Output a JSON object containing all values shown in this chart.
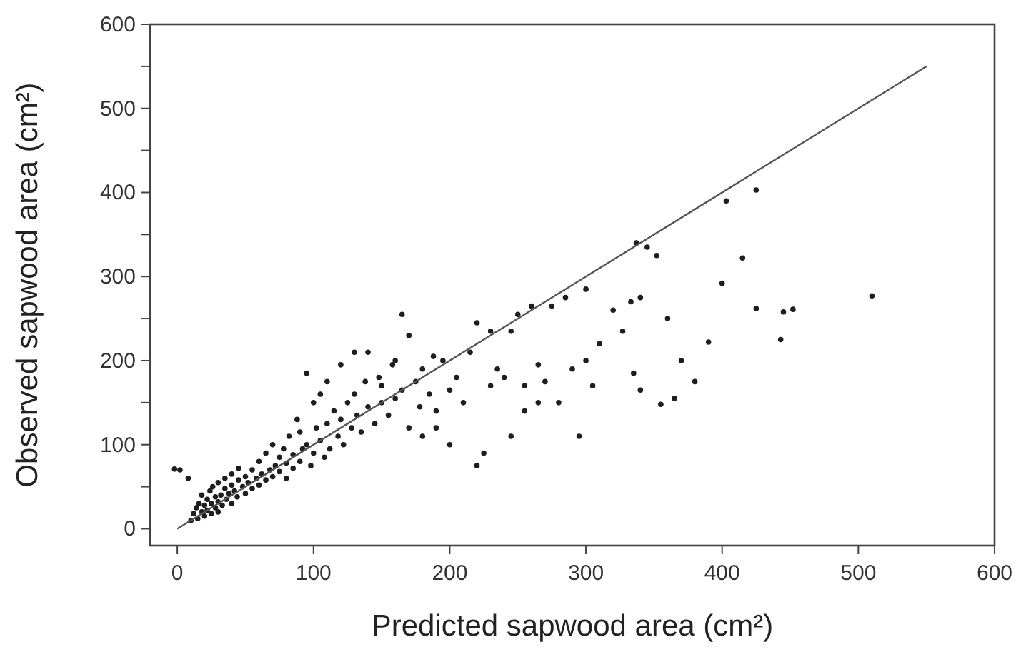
{
  "chart_data": {
    "type": "scatter",
    "xlabel": "Predicted sapwood area (cm²)",
    "ylabel": "Observed sapwood area (cm²)",
    "xlim": [
      -20,
      600
    ],
    "ylim": [
      -20,
      600
    ],
    "xticks": [
      0,
      100,
      200,
      300,
      400,
      500,
      600
    ],
    "yticks": [
      0,
      {
        "value": 50,
        "label": null
      },
      100,
      {
        "value": 150,
        "label": null
      },
      200,
      {
        "value": 250,
        "label": null
      },
      300,
      {
        "value": 350,
        "label": null
      },
      400,
      {
        "value": 450,
        "label": null
      },
      500,
      {
        "value": 550,
        "label": null
      },
      600
    ],
    "grid": false,
    "series": [
      {
        "type": "scatter",
        "color": "#1e1e1e",
        "marker": "circle",
        "x": [
          -2,
          2,
          8,
          10,
          12,
          14,
          15,
          16,
          18,
          18,
          20,
          20,
          22,
          22,
          24,
          25,
          25,
          26,
          28,
          28,
          30,
          30,
          30,
          32,
          33,
          35,
          35,
          36,
          38,
          40,
          40,
          40,
          42,
          44,
          45,
          45,
          48,
          50,
          50,
          52,
          55,
          55,
          58,
          60,
          60,
          62,
          65,
          65,
          68,
          70,
          70,
          72,
          75,
          75,
          78,
          80,
          80,
          82,
          85,
          85,
          88,
          90,
          90,
          92,
          95,
          95,
          98,
          100,
          100,
          102,
          105,
          105,
          108,
          110,
          110,
          112,
          115,
          118,
          120,
          120,
          122,
          125,
          128,
          130,
          130,
          132,
          135,
          138,
          140,
          140,
          145,
          148,
          150,
          150,
          155,
          158,
          160,
          160,
          165,
          165,
          170,
          170,
          175,
          178,
          180,
          180,
          185,
          188,
          190,
          190,
          195,
          200,
          200,
          205,
          210,
          215,
          220,
          220,
          225,
          230,
          230,
          235,
          240,
          245,
          245,
          250,
          255,
          255,
          260,
          265,
          265,
          270,
          275,
          280,
          285,
          290,
          295,
          300,
          300,
          305,
          310,
          320,
          327,
          333,
          335,
          337,
          340,
          340,
          345,
          352,
          355,
          360,
          365,
          370,
          380,
          390,
          400,
          403,
          415,
          425,
          425,
          443,
          445,
          452,
          510
        ],
        "values": [
          71,
          70,
          60,
          10,
          18,
          25,
          12,
          30,
          20,
          40,
          15,
          28,
          35,
          22,
          45,
          18,
          30,
          50,
          25,
          38,
          20,
          32,
          55,
          40,
          28,
          48,
          60,
          35,
          42,
          30,
          52,
          65,
          45,
          38,
          58,
          72,
          50,
          42,
          62,
          55,
          48,
          70,
          60,
          52,
          80,
          65,
          58,
          90,
          70,
          62,
          100,
          75,
          68,
          85,
          95,
          60,
          78,
          110,
          72,
          88,
          130,
          80,
          115,
          95,
          100,
          185,
          75,
          90,
          150,
          120,
          105,
          160,
          85,
          125,
          175,
          95,
          140,
          110,
          130,
          195,
          100,
          150,
          120,
          160,
          210,
          135,
          115,
          175,
          145,
          210,
          125,
          180,
          150,
          170,
          135,
          195,
          155,
          200,
          255,
          165,
          230,
          120,
          175,
          145,
          110,
          190,
          160,
          205,
          140,
          120,
          200,
          165,
          100,
          180,
          150,
          210,
          245,
          75,
          90,
          170,
          235,
          190,
          180,
          110,
          235,
          255,
          170,
          140,
          265,
          195,
          150,
          175,
          265,
          150,
          275,
          190,
          110,
          200,
          285,
          170,
          220,
          260,
          235,
          270,
          185,
          340,
          275,
          165,
          335,
          325,
          148,
          250,
          155,
          200,
          175,
          222,
          292,
          390,
          322,
          262,
          403,
          225,
          258,
          261,
          277
        ]
      },
      {
        "type": "line",
        "color": "#555555",
        "marker": "none",
        "line_style": "solid",
        "x": [
          0,
          550
        ],
        "values": [
          0,
          550
        ]
      }
    ]
  }
}
